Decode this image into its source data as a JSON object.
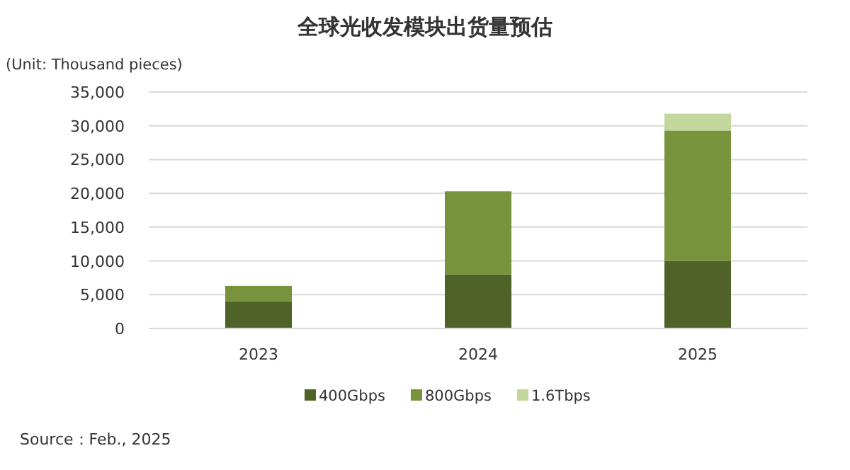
{
  "chart_data": {
    "type": "bar",
    "stacked": true,
    "title": "全球光收发模块出货量预估",
    "ylabel": "(Unit: Thousand pieces)",
    "categories": [
      "2023",
      "2024",
      "2025"
    ],
    "series": [
      {
        "name": "400Gbps",
        "color": "#4f6228",
        "values": [
          4000,
          8000,
          10000
        ]
      },
      {
        "name": "800Gbps",
        "color": "#77933c",
        "values": [
          2300,
          12300,
          19300
        ]
      },
      {
        "name": "1.6Tbps",
        "color": "#c3d69b",
        "values": [
          null,
          null,
          2500
        ]
      }
    ],
    "ylim": [
      0,
      35000
    ],
    "yticks": [
      {
        "value": 0,
        "label": "0"
      },
      {
        "value": 5000,
        "label": "5,000"
      },
      {
        "value": 10000,
        "label": "10,000"
      },
      {
        "value": 15000,
        "label": "15,000"
      },
      {
        "value": 20000,
        "label": "20,000"
      },
      {
        "value": 25000,
        "label": "25,000"
      },
      {
        "value": 30000,
        "label": "30,000"
      },
      {
        "value": 35000,
        "label": "35,000"
      }
    ],
    "grid": "y",
    "legend": "bottom",
    "annotations": [
      "Source：Feb., 2025"
    ]
  }
}
